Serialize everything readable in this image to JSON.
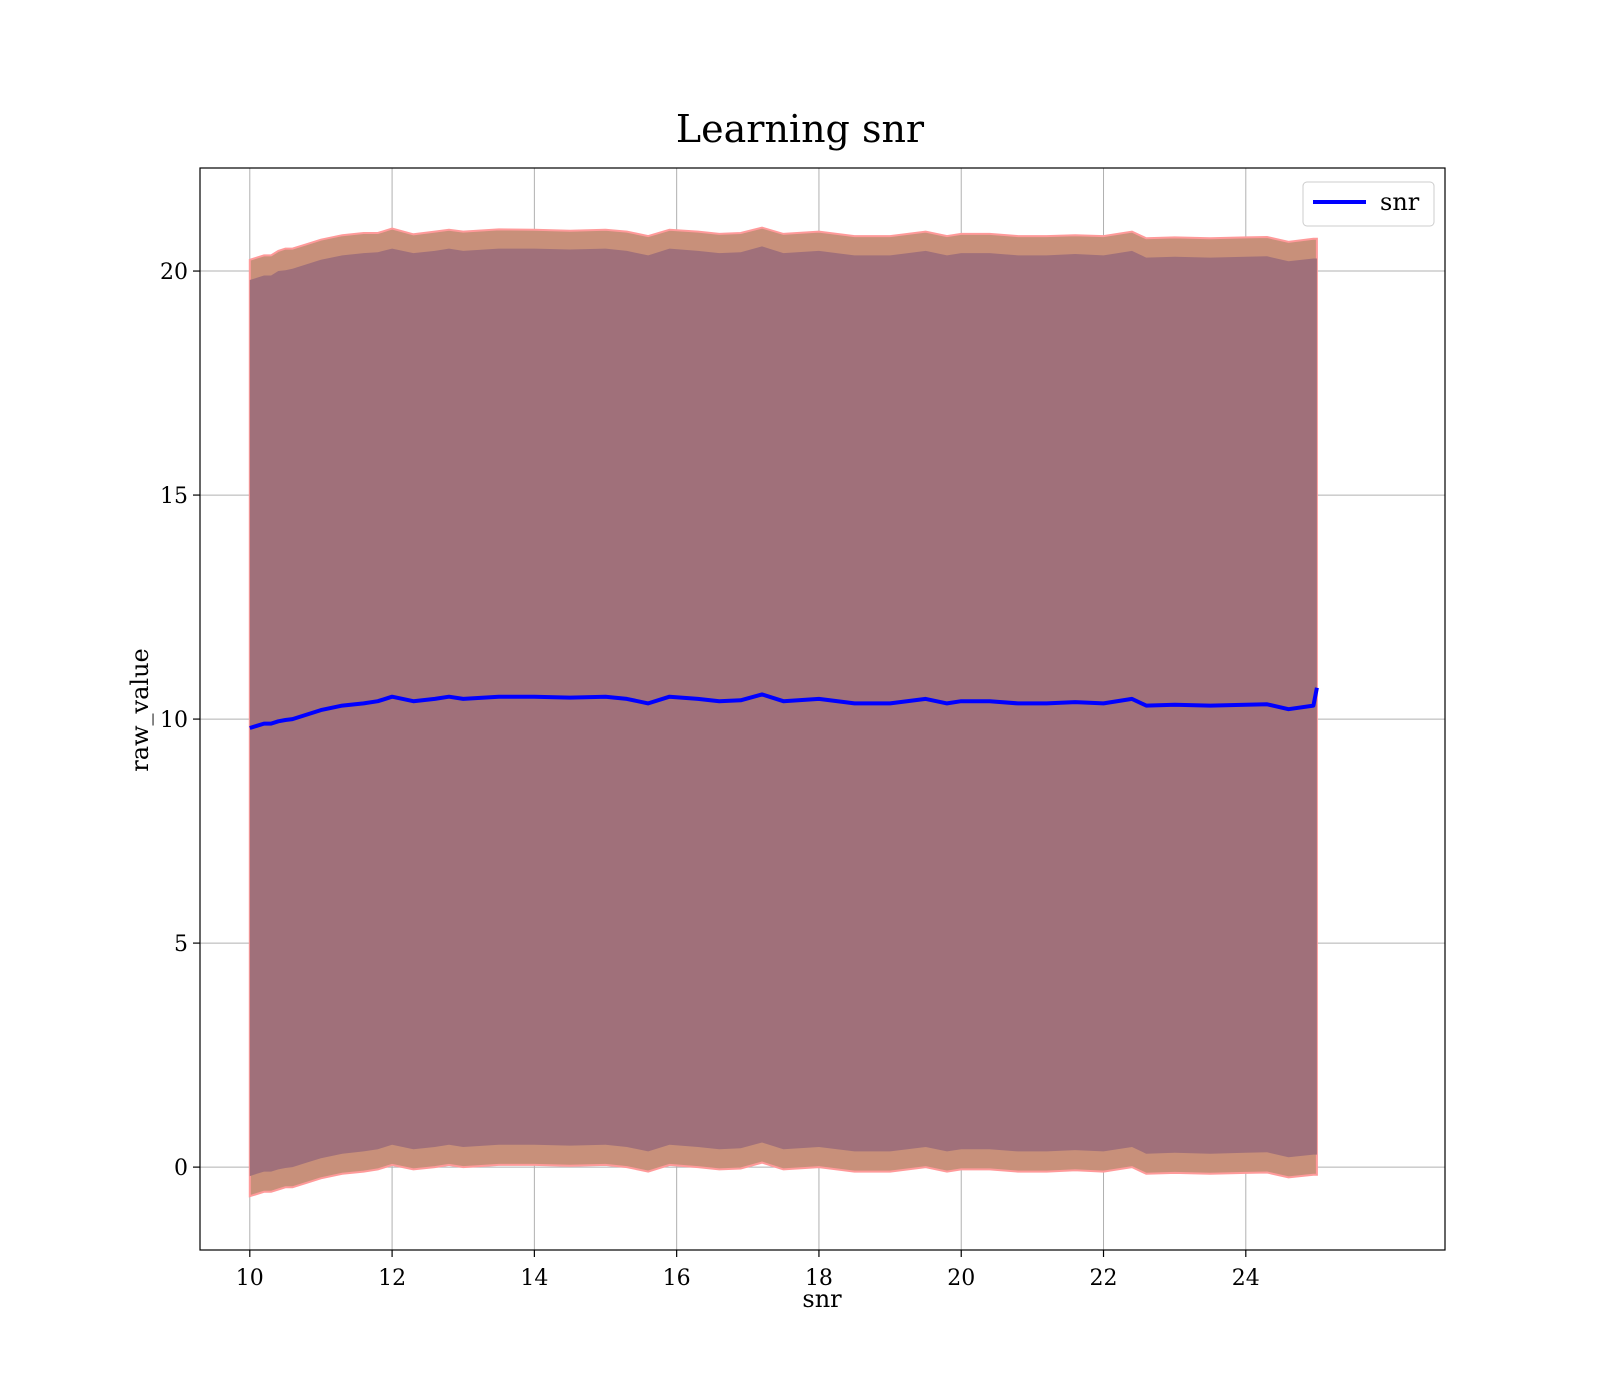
{
  "chart_data": {
    "type": "line",
    "title": "Learning snr",
    "xlabel": "snr",
    "ylabel": "raw_value",
    "xlim": [
      9.3,
      26.8
    ],
    "ylim": [
      -1.85,
      22.3
    ],
    "x_ticks": [
      10,
      12,
      14,
      16,
      18,
      20,
      22,
      24
    ],
    "y_ticks": [
      0,
      5,
      10,
      15,
      20
    ],
    "grid": true,
    "legend": {
      "position": "top-right",
      "entries": [
        "snr"
      ]
    },
    "colors": {
      "line": "#0000ff",
      "inner_band": "#a0707a",
      "outer_band": "#c8907a",
      "outer_band_edge": "#ff9a9a",
      "grid": "#b0b0b0"
    },
    "series": [
      {
        "name": "snr",
        "x": [
          10.0,
          10.1,
          10.2,
          10.3,
          10.4,
          10.5,
          10.6,
          10.8,
          11.0,
          11.3,
          11.6,
          11.8,
          12.0,
          12.3,
          12.6,
          12.8,
          13.0,
          13.5,
          14.0,
          14.5,
          15.0,
          15.3,
          15.6,
          15.9,
          16.3,
          16.6,
          16.9,
          17.2,
          17.5,
          18.0,
          18.5,
          19.0,
          19.5,
          19.8,
          20.0,
          20.4,
          20.8,
          21.2,
          21.6,
          22.0,
          22.4,
          22.6,
          23.0,
          23.5,
          24.0,
          24.3,
          24.6,
          24.95,
          25.0
        ],
        "y": [
          9.8,
          9.85,
          9.9,
          9.9,
          9.95,
          9.98,
          10.0,
          10.1,
          10.2,
          10.3,
          10.35,
          10.4,
          10.5,
          10.4,
          10.45,
          10.5,
          10.45,
          10.5,
          10.5,
          10.48,
          10.5,
          10.45,
          10.35,
          10.5,
          10.45,
          10.4,
          10.42,
          10.55,
          10.4,
          10.45,
          10.35,
          10.35,
          10.45,
          10.35,
          10.4,
          10.4,
          10.35,
          10.35,
          10.38,
          10.35,
          10.45,
          10.3,
          10.32,
          10.3,
          10.32,
          10.33,
          10.22,
          10.3,
          10.7
        ],
        "inner_upper": [
          19.8,
          19.85,
          19.9,
          19.9,
          20.0,
          20.02,
          20.05,
          20.15,
          20.25,
          20.35,
          20.4,
          20.42,
          20.5,
          20.4,
          20.45,
          20.5,
          20.45,
          20.5,
          20.5,
          20.48,
          20.5,
          20.45,
          20.35,
          20.5,
          20.45,
          20.4,
          20.42,
          20.55,
          20.4,
          20.45,
          20.35,
          20.35,
          20.45,
          20.35,
          20.4,
          20.4,
          20.35,
          20.35,
          20.38,
          20.35,
          20.45,
          20.3,
          20.32,
          20.3,
          20.32,
          20.33,
          20.22,
          20.28,
          20.28
        ],
        "inner_lower": [
          -0.2,
          -0.15,
          -0.1,
          -0.1,
          -0.05,
          -0.02,
          0.0,
          0.1,
          0.2,
          0.3,
          0.35,
          0.4,
          0.5,
          0.4,
          0.45,
          0.5,
          0.45,
          0.5,
          0.5,
          0.48,
          0.5,
          0.45,
          0.35,
          0.5,
          0.45,
          0.4,
          0.42,
          0.55,
          0.4,
          0.45,
          0.35,
          0.35,
          0.45,
          0.35,
          0.4,
          0.4,
          0.35,
          0.35,
          0.38,
          0.35,
          0.45,
          0.3,
          0.32,
          0.3,
          0.32,
          0.33,
          0.22,
          0.28,
          0.28
        ],
        "outer_upper": [
          20.25,
          20.3,
          20.35,
          20.35,
          20.45,
          20.5,
          20.5,
          20.6,
          20.7,
          20.8,
          20.85,
          20.85,
          20.95,
          20.82,
          20.88,
          20.92,
          20.88,
          20.93,
          20.92,
          20.9,
          20.92,
          20.88,
          20.78,
          20.92,
          20.88,
          20.83,
          20.85,
          20.97,
          20.83,
          20.88,
          20.78,
          20.78,
          20.88,
          20.78,
          20.83,
          20.83,
          20.78,
          20.78,
          20.8,
          20.78,
          20.88,
          20.73,
          20.75,
          20.73,
          20.75,
          20.76,
          20.65,
          20.72,
          20.72
        ],
        "outer_lower": [
          -0.65,
          -0.6,
          -0.55,
          -0.55,
          -0.5,
          -0.45,
          -0.45,
          -0.35,
          -0.25,
          -0.15,
          -0.1,
          -0.05,
          0.05,
          -0.05,
          0.0,
          0.05,
          0.0,
          0.05,
          0.05,
          0.03,
          0.05,
          0.0,
          -0.1,
          0.05,
          0.0,
          -0.05,
          -0.03,
          0.1,
          -0.05,
          0.0,
          -0.1,
          -0.1,
          0.0,
          -0.1,
          -0.05,
          -0.05,
          -0.1,
          -0.1,
          -0.07,
          -0.1,
          0.0,
          -0.15,
          -0.13,
          -0.15,
          -0.13,
          -0.12,
          -0.23,
          -0.17,
          -0.17
        ]
      }
    ]
  }
}
